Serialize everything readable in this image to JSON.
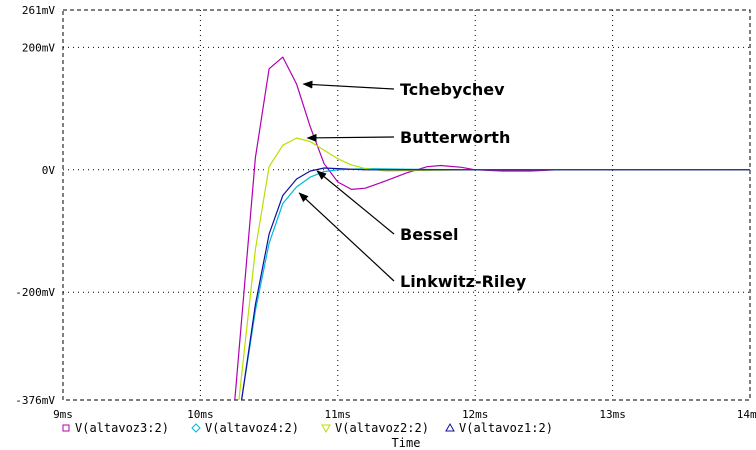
{
  "chart_data": {
    "type": "line",
    "xlabel": "Time",
    "x_unit": "ms",
    "xlim": [
      9,
      14
    ],
    "ylim": [
      -376,
      261
    ],
    "y_unit": "mV",
    "grid": true,
    "x_ticks": [
      {
        "value": 9,
        "label": "9ms"
      },
      {
        "value": 10,
        "label": "10ms"
      },
      {
        "value": 11,
        "label": "11ms"
      },
      {
        "value": 12,
        "label": "12ms"
      },
      {
        "value": 13,
        "label": "13ms"
      },
      {
        "value": 14,
        "label": "14ms"
      }
    ],
    "y_ticks": [
      {
        "value": 261,
        "label": "261mV"
      },
      {
        "value": 200,
        "label": "200mV"
      },
      {
        "value": 0,
        "label": "0V"
      },
      {
        "value": -200,
        "label": "-200mV"
      },
      {
        "value": -376,
        "label": "-376mV"
      }
    ],
    "series": [
      {
        "legend_label": "V(altavoz3:2)",
        "marker": "square",
        "color": "#b000b0",
        "points": [
          [
            10.25,
            -376
          ],
          [
            10.4,
            20
          ],
          [
            10.5,
            165
          ],
          [
            10.6,
            184
          ],
          [
            10.7,
            140
          ],
          [
            10.8,
            70
          ],
          [
            10.9,
            10
          ],
          [
            11.0,
            -20
          ],
          [
            11.1,
            -32
          ],
          [
            11.2,
            -30
          ],
          [
            11.35,
            -18
          ],
          [
            11.5,
            -5
          ],
          [
            11.65,
            5
          ],
          [
            11.75,
            7
          ],
          [
            11.9,
            4
          ],
          [
            12.0,
            0
          ],
          [
            12.2,
            -2
          ],
          [
            12.4,
            -2
          ],
          [
            12.6,
            0
          ],
          [
            13.0,
            0
          ],
          [
            14.0,
            0
          ]
        ]
      },
      {
        "legend_label": "V(altavoz4:2)",
        "marker": "diamond",
        "color": "#00b8d8",
        "points": [
          [
            10.3,
            -376
          ],
          [
            10.4,
            -230
          ],
          [
            10.5,
            -120
          ],
          [
            10.6,
            -55
          ],
          [
            10.7,
            -28
          ],
          [
            10.8,
            -12
          ],
          [
            10.9,
            -3
          ],
          [
            11.0,
            0
          ],
          [
            11.2,
            2
          ],
          [
            11.5,
            1
          ],
          [
            12.0,
            0
          ],
          [
            14.0,
            0
          ]
        ]
      },
      {
        "legend_label": "V(altavoz2:2)",
        "marker": "triangle-down",
        "color": "#b8e000",
        "points": [
          [
            10.28,
            -376
          ],
          [
            10.4,
            -130
          ],
          [
            10.5,
            5
          ],
          [
            10.6,
            40
          ],
          [
            10.7,
            52
          ],
          [
            10.8,
            46
          ],
          [
            10.9,
            32
          ],
          [
            11.0,
            18
          ],
          [
            11.1,
            8
          ],
          [
            11.2,
            2
          ],
          [
            11.35,
            -2
          ],
          [
            11.6,
            -1
          ],
          [
            12.0,
            0
          ],
          [
            14.0,
            0
          ]
        ]
      },
      {
        "legend_label": "V(altavoz1:2)",
        "marker": "triangle-up",
        "color": "#1010a0",
        "points": [
          [
            10.3,
            -376
          ],
          [
            10.4,
            -220
          ],
          [
            10.5,
            -105
          ],
          [
            10.6,
            -42
          ],
          [
            10.7,
            -15
          ],
          [
            10.8,
            -2
          ],
          [
            10.9,
            3
          ],
          [
            11.0,
            2
          ],
          [
            11.2,
            0
          ],
          [
            11.5,
            0
          ],
          [
            12.0,
            0
          ],
          [
            14.0,
            0
          ]
        ]
      }
    ],
    "annotations": [
      {
        "text": "Tchebychev",
        "arrow_to": [
          10.75,
          140
        ]
      },
      {
        "text": "Butterworth",
        "arrow_to": [
          10.78,
          52
        ]
      },
      {
        "text": "Bessel",
        "arrow_to": [
          10.85,
          -2
        ]
      },
      {
        "text": "Linkwitz-Riley",
        "arrow_to": [
          10.72,
          -38
        ]
      }
    ]
  }
}
